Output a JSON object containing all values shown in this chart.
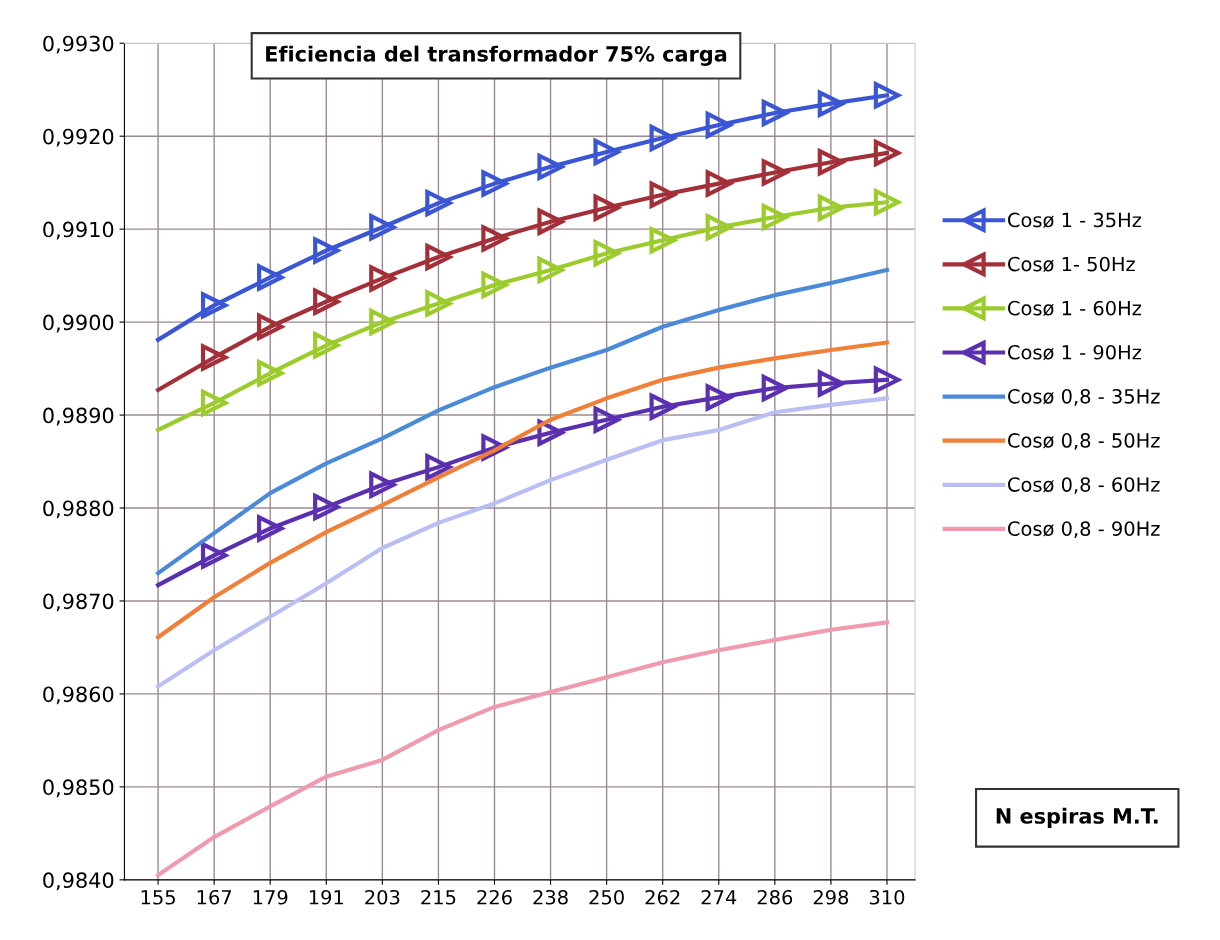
{
  "chart_data": {
    "type": "line",
    "title": "Eficiencia del transformador 75% carga",
    "xlabel": "N espiras M.T.",
    "categories": [
      "155",
      "167",
      "179",
      "191",
      "203",
      "215",
      "226",
      "238",
      "250",
      "262",
      "274",
      "286",
      "298",
      "310"
    ],
    "ylim": [
      0.984,
      0.993
    ],
    "yticks": [
      {
        "value": 0.984,
        "label": "0,9840"
      },
      {
        "value": 0.985,
        "label": "0,9850"
      },
      {
        "value": 0.986,
        "label": "0,9860"
      },
      {
        "value": 0.987,
        "label": "0,9870"
      },
      {
        "value": 0.988,
        "label": "0,9880"
      },
      {
        "value": 0.989,
        "label": "0,9890"
      },
      {
        "value": 0.99,
        "label": "0,9900"
      },
      {
        "value": 0.991,
        "label": "0,9910"
      },
      {
        "value": 0.992,
        "label": "0,9920"
      },
      {
        "value": 0.993,
        "label": "0,9930"
      }
    ],
    "grid": true,
    "legend": "right",
    "series": [
      {
        "name": "Cosø 1 - 35Hz",
        "color": "#3a56d4",
        "marker": "triangle",
        "values": [
          0.98981,
          0.99018,
          0.99048,
          0.99077,
          0.99102,
          0.99128,
          0.99149,
          0.99167,
          0.99183,
          0.99198,
          0.99212,
          0.99225,
          0.99235,
          0.99244
        ]
      },
      {
        "name": "Cosø 1- 50Hz",
        "color": "#a33038",
        "marker": "triangle",
        "values": [
          0.98927,
          0.98962,
          0.98995,
          0.99022,
          0.99047,
          0.9907,
          0.9909,
          0.99108,
          0.99123,
          0.99137,
          0.99149,
          0.99161,
          0.99172,
          0.99182
        ]
      },
      {
        "name": "Cosø 1 - 60Hz",
        "color": "#9ccc2c",
        "marker": "triangle",
        "values": [
          0.98884,
          0.98913,
          0.98945,
          0.98975,
          0.99,
          0.9902,
          0.9904,
          0.99056,
          0.99074,
          0.99088,
          0.99102,
          0.99113,
          0.99123,
          0.99129
        ]
      },
      {
        "name": "Cosø 1 - 90Hz",
        "color": "#5a2fb0",
        "marker": "triangle",
        "values": [
          0.98717,
          0.98749,
          0.98778,
          0.98801,
          0.98825,
          0.98844,
          0.98865,
          0.98881,
          0.98895,
          0.98909,
          0.98919,
          0.98929,
          0.98934,
          0.98938
        ]
      },
      {
        "name": "Cosø 0,8 - 35Hz",
        "color": "#4a8ad8",
        "values": [
          0.9873,
          0.98773,
          0.98816,
          0.98848,
          0.98875,
          0.98905,
          0.9893,
          0.98951,
          0.9897,
          0.98995,
          0.99013,
          0.99029,
          0.99042,
          0.99056
        ]
      },
      {
        "name": "Cosø 0,8 - 50Hz",
        "color": "#f07f38",
        "values": [
          0.98661,
          0.98704,
          0.98741,
          0.98774,
          0.98803,
          0.98833,
          0.98862,
          0.98895,
          0.98918,
          0.98938,
          0.98951,
          0.98961,
          0.9897,
          0.98978
        ]
      },
      {
        "name": "Cosø 0,8 - 60Hz",
        "color": "#b9bff4",
        "values": [
          0.98608,
          0.98647,
          0.98683,
          0.98719,
          0.98757,
          0.98784,
          0.98805,
          0.9883,
          0.98852,
          0.98873,
          0.98884,
          0.98903,
          0.98911,
          0.98918
        ]
      },
      {
        "name": "Cosø 0,8 - 90Hz",
        "color": "#f09aae",
        "values": [
          0.98405,
          0.98446,
          0.98479,
          0.98511,
          0.98529,
          0.98561,
          0.98586,
          0.98602,
          0.98618,
          0.98634,
          0.98647,
          0.98658,
          0.98669,
          0.98677
        ]
      }
    ]
  }
}
